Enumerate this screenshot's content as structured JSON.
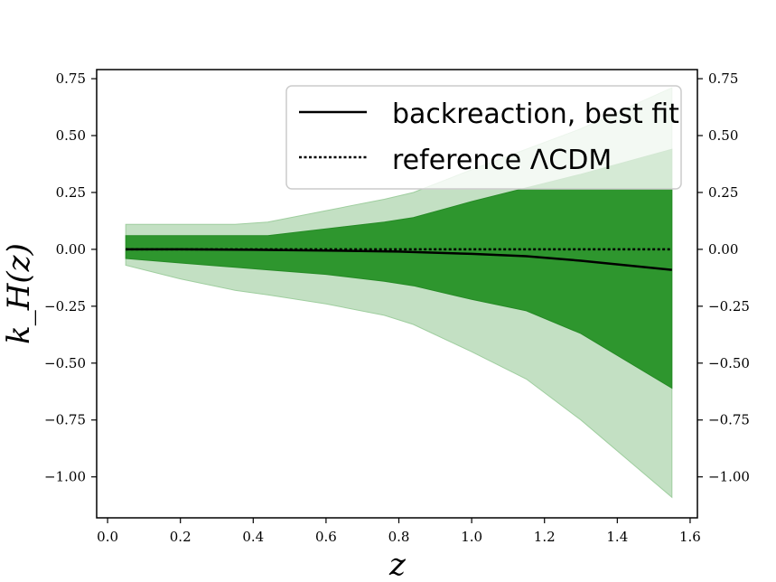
{
  "chart_data": {
    "type": "area",
    "xlabel": "z",
    "ylabel": "k_H(z)",
    "xlim": [
      -0.03,
      1.62
    ],
    "ylim": [
      -1.18,
      0.79
    ],
    "xticks": [
      0.0,
      0.2,
      0.4,
      0.6,
      0.8,
      1.0,
      1.2,
      1.4,
      1.6
    ],
    "xtick_labels": [
      "0.0",
      "0.2",
      "0.4",
      "0.6",
      "0.8",
      "1.0",
      "1.2",
      "1.4",
      "1.6"
    ],
    "yticks": [
      0.75,
      0.5,
      0.25,
      0.0,
      -0.25,
      -0.5,
      -0.75,
      -1.0
    ],
    "ytick_labels": [
      "0.75",
      "0.50",
      "0.25",
      "0.00",
      "−0.25",
      "−0.50",
      "−0.75",
      "−1.00"
    ],
    "grid": false,
    "legend_position": "top-right",
    "colors": {
      "inner_band": "#2e962e",
      "outer_band": "#c3e0c3",
      "line": "#000000"
    },
    "series": [
      {
        "name": "backreaction, best fit",
        "style": "solid",
        "x": [
          0.05,
          0.2,
          0.4,
          0.6,
          0.8,
          1.0,
          1.15,
          1.3,
          1.55
        ],
        "values": [
          0.0,
          0.0,
          -0.002,
          -0.005,
          -0.01,
          -0.02,
          -0.03,
          -0.05,
          -0.09
        ]
      },
      {
        "name": "reference ΛCDM",
        "style": "dotted",
        "x": [
          0.05,
          1.55
        ],
        "values": [
          0.0,
          0.0
        ]
      }
    ],
    "bands": [
      {
        "level": "outer",
        "x": [
          0.05,
          0.2,
          0.35,
          0.44,
          0.6,
          0.76,
          0.84,
          1.0,
          1.15,
          1.3,
          1.55
        ],
        "upper": [
          0.11,
          0.11,
          0.11,
          0.12,
          0.17,
          0.22,
          0.25,
          0.35,
          0.44,
          0.53,
          0.71
        ],
        "lower": [
          -0.07,
          -0.13,
          -0.18,
          -0.2,
          -0.24,
          -0.29,
          -0.33,
          -0.45,
          -0.57,
          -0.75,
          -1.09
        ]
      },
      {
        "level": "inner",
        "x": [
          0.05,
          0.2,
          0.44,
          0.6,
          0.76,
          0.84,
          1.0,
          1.15,
          1.3,
          1.55
        ],
        "upper": [
          0.06,
          0.06,
          0.06,
          0.09,
          0.12,
          0.14,
          0.21,
          0.27,
          0.33,
          0.44
        ],
        "lower": [
          -0.04,
          -0.06,
          -0.09,
          -0.11,
          -0.14,
          -0.16,
          -0.22,
          -0.27,
          -0.37,
          -0.61
        ]
      }
    ]
  }
}
